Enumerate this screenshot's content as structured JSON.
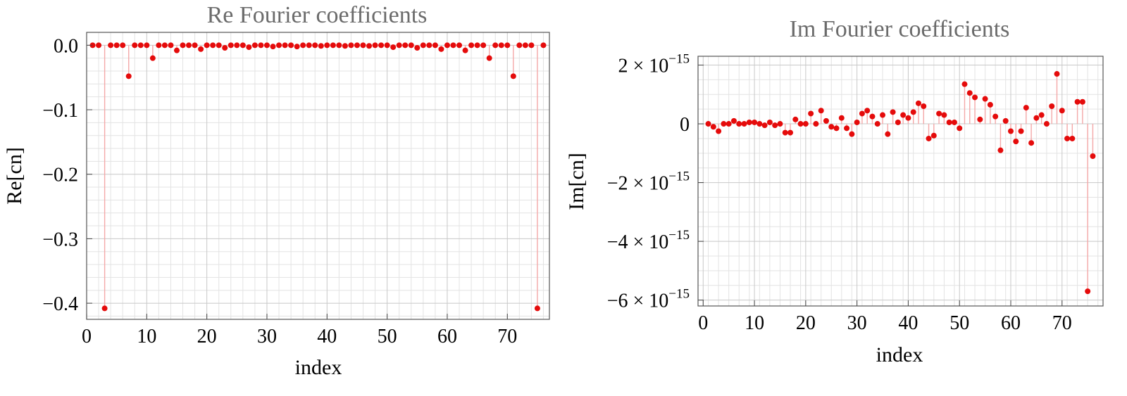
{
  "chart_data": [
    {
      "type": "scatter",
      "title": "Re Fourier coefficients",
      "xlabel": "index",
      "ylabel": "Re[cn]",
      "xlim": [
        0,
        77
      ],
      "ylim": [
        -0.425,
        0.02
      ],
      "x_ticks": [
        0,
        10,
        20,
        30,
        40,
        50,
        60,
        70
      ],
      "y_ticks": [
        {
          "value": 0.0,
          "label": "0.0"
        },
        {
          "value": -0.1,
          "label": "−0.1"
        },
        {
          "value": -0.2,
          "label": "−0.2"
        },
        {
          "value": -0.3,
          "label": "−0.3"
        },
        {
          "value": -0.4,
          "label": "−0.4"
        }
      ],
      "grid": true,
      "color": "#e50b0b",
      "stem_color": "#f4a8a8",
      "x": [
        1,
        2,
        3,
        4,
        5,
        6,
        7,
        8,
        9,
        10,
        11,
        12,
        13,
        14,
        15,
        16,
        17,
        18,
        19,
        20,
        21,
        22,
        23,
        24,
        25,
        26,
        27,
        28,
        29,
        30,
        31,
        32,
        33,
        34,
        35,
        36,
        37,
        38,
        39,
        40,
        41,
        42,
        43,
        44,
        45,
        46,
        47,
        48,
        49,
        50,
        51,
        52,
        53,
        54,
        55,
        56,
        57,
        58,
        59,
        60,
        61,
        62,
        63,
        64,
        65,
        66,
        67,
        68,
        69,
        70,
        71,
        72,
        73,
        74,
        75,
        76
      ],
      "values": [
        0,
        0,
        -0.408,
        0,
        0,
        0,
        -0.048,
        0,
        0,
        0,
        -0.02,
        0,
        0,
        0,
        -0.008,
        0,
        0,
        0,
        -0.006,
        0,
        0,
        0,
        -0.004,
        0,
        0,
        0,
        -0.003,
        0,
        0,
        0,
        -0.002,
        0,
        0,
        0,
        -0.002,
        0,
        0,
        0,
        -0.001,
        0,
        0,
        0,
        -0.001,
        0,
        0,
        0,
        -0.001,
        0,
        0,
        0,
        -0.003,
        0,
        0,
        0,
        -0.004,
        0,
        0,
        0,
        -0.006,
        0,
        0,
        0,
        -0.008,
        0,
        0,
        0,
        -0.02,
        0,
        0,
        0,
        -0.048,
        0,
        0,
        0,
        -0.408,
        0
      ]
    },
    {
      "type": "scatter",
      "title": "Im Fourier coefficients",
      "xlabel": "index",
      "ylabel": "Im[cn]",
      "xlim": [
        -1,
        78
      ],
      "ylim": [
        -6.2e-15,
        2.3e-15
      ],
      "x_ticks": [
        0,
        10,
        20,
        30,
        40,
        50,
        60,
        70
      ],
      "y_ticks": [
        {
          "value": 2e-15,
          "mant": "2",
          "exp": "−15"
        },
        {
          "value": 0,
          "mant": "0",
          "exp": ""
        },
        {
          "value": -2e-15,
          "mant": "−2",
          "exp": "−15"
        },
        {
          "value": -4e-15,
          "mant": "−4",
          "exp": "−15"
        },
        {
          "value": -6e-15,
          "mant": "−6",
          "exp": "−15"
        }
      ],
      "tick_base": "× 10",
      "grid": true,
      "color": "#e50b0b",
      "stem_color": "#f4a8a8",
      "x": [
        1,
        2,
        3,
        4,
        5,
        6,
        7,
        8,
        9,
        10,
        11,
        12,
        13,
        14,
        15,
        16,
        17,
        18,
        19,
        20,
        21,
        22,
        23,
        24,
        25,
        26,
        27,
        28,
        29,
        30,
        31,
        32,
        33,
        34,
        35,
        36,
        37,
        38,
        39,
        40,
        41,
        42,
        43,
        44,
        45,
        46,
        47,
        48,
        49,
        50,
        51,
        52,
        53,
        54,
        55,
        56,
        57,
        58,
        59,
        60,
        61,
        62,
        63,
        64,
        65,
        66,
        67,
        68,
        69,
        70,
        71,
        72,
        73,
        74,
        75,
        76
      ],
      "values": [
        0,
        -1e-16,
        -2.5e-16,
        0,
        0,
        1e-16,
        0,
        0,
        5e-17,
        5e-17,
        0,
        -5e-17,
        5e-17,
        -5e-17,
        0,
        -3e-16,
        -3e-16,
        1.5e-16,
        0,
        0,
        3.5e-16,
        0,
        4.5e-16,
        1e-16,
        -1e-16,
        -1.5e-16,
        2e-16,
        -1.5e-16,
        -3.5e-16,
        5e-17,
        3.5e-16,
        4.5e-16,
        2.5e-16,
        0,
        3e-16,
        -3.5e-16,
        4e-16,
        5e-17,
        3e-16,
        2e-16,
        4e-16,
        7e-16,
        6e-16,
        -5e-16,
        -4e-16,
        3.5e-16,
        3e-16,
        5e-17,
        5e-17,
        -1.5e-16,
        1.35e-15,
        1.05e-15,
        9e-16,
        1.5e-16,
        8.5e-16,
        6.5e-16,
        2.5e-16,
        -9e-16,
        1e-16,
        -2.5e-16,
        -6e-16,
        -2.5e-16,
        5.5e-16,
        -6.5e-16,
        2e-16,
        3e-16,
        0,
        6e-16,
        1.7e-15,
        4.5e-16,
        -5e-16,
        -5e-16,
        7.5e-16,
        7.5e-16,
        -5.7e-15,
        -1.1e-15
      ]
    }
  ]
}
